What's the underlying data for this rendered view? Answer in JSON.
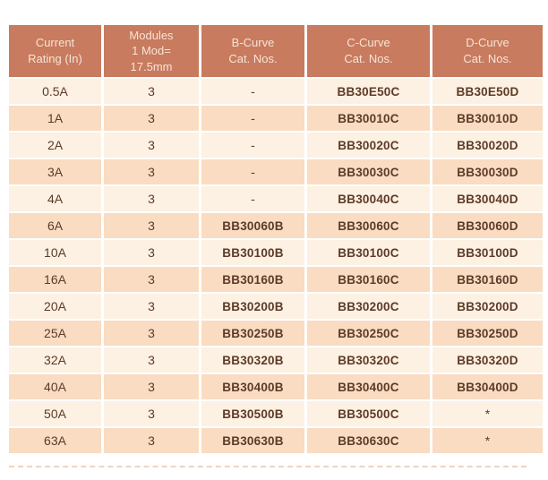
{
  "colors": {
    "header_bg": "#C87B5E",
    "header_text": "#F7E4D7",
    "row_light": "#FCF1E2",
    "row_dark": "#F9DCC2",
    "cell_text": "#5E3A28",
    "divider": "#FFFFFF",
    "bottom_rule": "#EED4BF"
  },
  "table": {
    "columns": [
      {
        "label": "Current\nRating (In)",
        "width": 103
      },
      {
        "label": "Modules\n1 Mod=\n17.5mm",
        "width": 106
      },
      {
        "label": "B-Curve\nCat. Nos.",
        "width": 115
      },
      {
        "label": "C-Curve\nCat. Nos.",
        "width": 137
      },
      {
        "label": "D-Curve\nCat. Nos.",
        "width": 123
      }
    ],
    "rows": [
      [
        "0.5A",
        "3",
        "-",
        "BB30E50C",
        "BB30E50D"
      ],
      [
        "1A",
        "3",
        "-",
        "BB30010C",
        "BB30010D"
      ],
      [
        "2A",
        "3",
        "-",
        "BB30020C",
        "BB30020D"
      ],
      [
        "3A",
        "3",
        "-",
        "BB30030C",
        "BB30030D"
      ],
      [
        "4A",
        "3",
        "-",
        "BB30040C",
        "BB30040D"
      ],
      [
        "6A",
        "3",
        "BB30060B",
        "BB30060C",
        "BB30060D"
      ],
      [
        "10A",
        "3",
        "BB30100B",
        "BB30100C",
        "BB30100D"
      ],
      [
        "16A",
        "3",
        "BB30160B",
        "BB30160C",
        "BB30160D"
      ],
      [
        "20A",
        "3",
        "BB30200B",
        "BB30200C",
        "BB30200D"
      ],
      [
        "25A",
        "3",
        "BB30250B",
        "BB30250C",
        "BB30250D"
      ],
      [
        "32A",
        "3",
        "BB30320B",
        "BB30320C",
        "BB30320D"
      ],
      [
        "40A",
        "3",
        "BB30400B",
        "BB30400C",
        "BB30400D"
      ],
      [
        "50A",
        "3",
        "BB30500B",
        "BB30500C",
        "*"
      ],
      [
        "63A",
        "3",
        "BB30630B",
        "BB30630C",
        "*"
      ]
    ]
  }
}
